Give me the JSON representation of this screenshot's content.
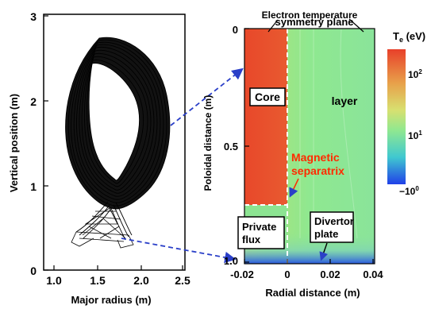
{
  "left_panel": {
    "ylabel": "Vertical position (m)",
    "xlabel": "Major radius (m)",
    "yticks": [
      "0",
      "1",
      "2",
      "3"
    ],
    "xticks": [
      "1.0",
      "1.5",
      "2.0",
      "2.5"
    ]
  },
  "right_panel": {
    "title_overlap_1": "Electron temperature",
    "title_overlap_2": "symmetry plane",
    "ylabel": "Poloidal distance (m)",
    "xlabel": "Radial distance (m)",
    "yticks": [
      "0",
      "0.5",
      "1.0"
    ],
    "xticks": [
      "-0.02",
      "0",
      "0.02",
      "0.04"
    ],
    "labels": {
      "core": "Core",
      "layer": "layer",
      "separatrix_line1": "Magnetic",
      "separatrix_line2": "separatrix",
      "private_line1": "Private",
      "private_line2": "flux",
      "divertor_line1": "Divertor",
      "divertor_line2": "plate"
    }
  },
  "colorbar": {
    "title": "T",
    "title_sub": "e",
    "title_unit": " (eV)",
    "ticks": [
      "10",
      "10",
      "−10"
    ],
    "tick_exps": [
      "2",
      "1",
      "0"
    ]
  },
  "colors": {
    "core_red": "#e8502a",
    "sol_green": "#8fe890",
    "separatrix_dash": "#ffffff",
    "arrow_blue": "#2a3fc8",
    "separatrix_label": "#ff2a00"
  }
}
